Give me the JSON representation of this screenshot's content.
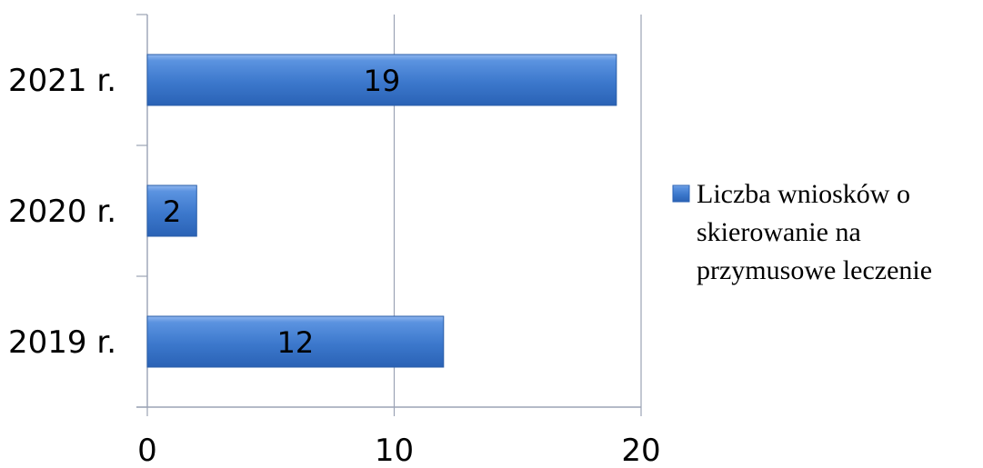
{
  "chart_data": {
    "type": "bar",
    "orientation": "horizontal",
    "categories": [
      "2021 r.",
      "2020 r.",
      "2019 r."
    ],
    "series": [
      {
        "name": "Liczba wniosków o skierowanie na przymusowe leczenie",
        "values": [
          19,
          2,
          12
        ],
        "color": "#4f86d6"
      }
    ],
    "xlim": [
      0,
      20
    ],
    "xticks": [
      "0",
      "10",
      "20"
    ],
    "grid": "vertical",
    "legend_position": "right",
    "data_labels": true
  },
  "legend": {
    "lines": [
      "Liczba wniosków o",
      "skierowanie na",
      "przymusowe leczenie"
    ],
    "color": "#4f86d6"
  }
}
